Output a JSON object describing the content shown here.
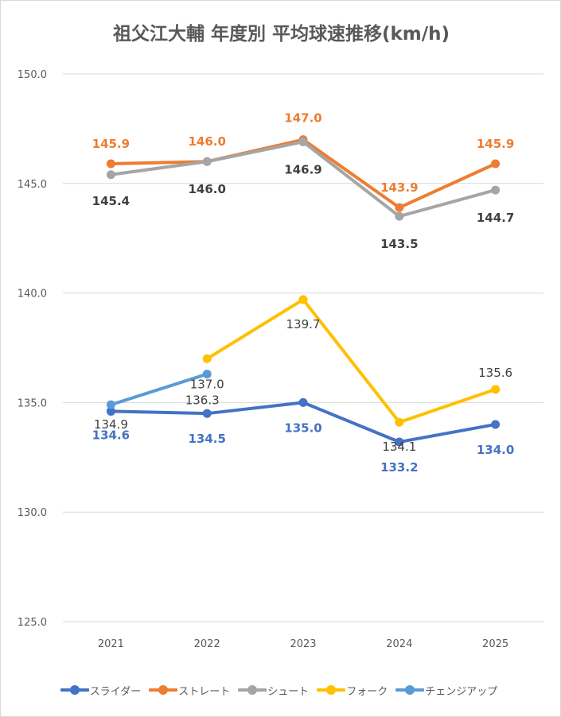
{
  "chart_data": {
    "type": "line",
    "title": "祖父江大輔 年度別 平均球速推移(km/h)",
    "categories": [
      "2021",
      "2022",
      "2023",
      "2024",
      "2025"
    ],
    "ylim": [
      125.0,
      150.0
    ],
    "y_ticks": [
      "125.0",
      "130.0",
      "135.0",
      "140.0",
      "145.0",
      "150.0"
    ],
    "grid": true,
    "legend_position": "bottom",
    "series": [
      {
        "name": "スライダー",
        "color": "#4472c4",
        "values": [
          134.6,
          134.5,
          135.0,
          133.2,
          134.0
        ],
        "labels": [
          "134.6",
          "134.5",
          "135.0",
          "133.2",
          "134.0"
        ]
      },
      {
        "name": "ストレート",
        "color": "#ed7d31",
        "values": [
          145.9,
          146.0,
          147.0,
          143.9,
          145.9
        ],
        "labels": [
          "145.9",
          "146.0",
          "147.0",
          "143.9",
          "145.9"
        ]
      },
      {
        "name": "シュート",
        "color": "#a5a5a5",
        "values": [
          145.4,
          146.0,
          146.9,
          143.5,
          144.7
        ],
        "labels": [
          "145.4",
          "146.0",
          "146.9",
          "143.5",
          "144.7"
        ]
      },
      {
        "name": "フォーク",
        "color": "#ffc000",
        "values": [
          null,
          137.0,
          139.7,
          134.1,
          135.6
        ],
        "labels": [
          null,
          "137.0",
          "139.7",
          "134.1",
          "135.6"
        ]
      },
      {
        "name": "チェンジアップ",
        "color": "#5b9bd5",
        "values": [
          134.9,
          136.3,
          null,
          null,
          null
        ],
        "labels": [
          "134.9",
          "136.3",
          null,
          null,
          null
        ]
      }
    ]
  }
}
